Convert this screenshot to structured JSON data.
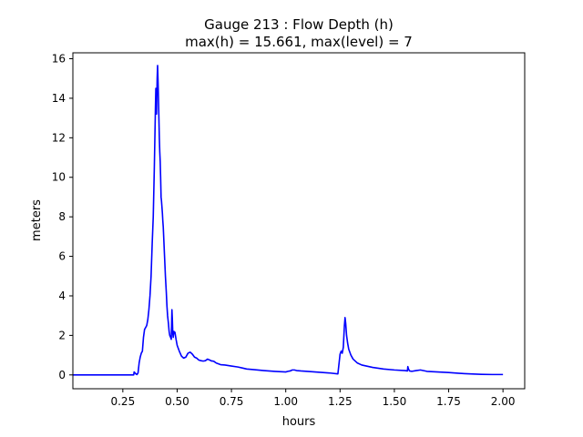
{
  "chart_data": {
    "type": "line",
    "title_lines": [
      "Gauge 213 : Flow Depth (h)",
      "max(h) =  15.661,    max(level) = 7"
    ],
    "xlabel": "hours",
    "ylabel": "meters",
    "xlim": [
      0.02,
      2.1
    ],
    "ylim": [
      -0.7,
      16.3
    ],
    "x_ticks": [
      0.25,
      0.5,
      0.75,
      1.0,
      1.25,
      1.5,
      1.75,
      2.0
    ],
    "x_tick_labels": [
      "0.25",
      "0.50",
      "0.75",
      "1.00",
      "1.25",
      "1.50",
      "1.75",
      "2.00"
    ],
    "y_ticks": [
      0,
      2,
      4,
      6,
      8,
      10,
      12,
      14,
      16
    ],
    "y_tick_labels": [
      "0",
      "2",
      "4",
      "6",
      "8",
      "10",
      "12",
      "14",
      "16"
    ],
    "grid": false,
    "series": [
      {
        "color": "#0000ff",
        "x": [
          0.0,
          0.1,
          0.2,
          0.3,
          0.302,
          0.305,
          0.31,
          0.315,
          0.32,
          0.325,
          0.33,
          0.335,
          0.34,
          0.345,
          0.35,
          0.355,
          0.36,
          0.365,
          0.37,
          0.375,
          0.38,
          0.385,
          0.39,
          0.395,
          0.4,
          0.402,
          0.405,
          0.408,
          0.41,
          0.412,
          0.414,
          0.416,
          0.418,
          0.42,
          0.422,
          0.424,
          0.426,
          0.428,
          0.43,
          0.432,
          0.434,
          0.436,
          0.438,
          0.44,
          0.442,
          0.444,
          0.446,
          0.448,
          0.45,
          0.453,
          0.456,
          0.46,
          0.463,
          0.466,
          0.47,
          0.473,
          0.476,
          0.478,
          0.48,
          0.482,
          0.485,
          0.49,
          0.495,
          0.5,
          0.51,
          0.52,
          0.53,
          0.54,
          0.55,
          0.56,
          0.57,
          0.58,
          0.59,
          0.6,
          0.61,
          0.62,
          0.63,
          0.64,
          0.65,
          0.66,
          0.665,
          0.67,
          0.68,
          0.7,
          0.72,
          0.75,
          0.78,
          0.8,
          0.82,
          0.85,
          0.9,
          0.95,
          1.0,
          1.01,
          1.02,
          1.03,
          1.04,
          1.05,
          1.07,
          1.1,
          1.15,
          1.2,
          1.24,
          1.25,
          1.255,
          1.26,
          1.265,
          1.27,
          1.273,
          1.276,
          1.28,
          1.285,
          1.29,
          1.3,
          1.31,
          1.33,
          1.35,
          1.4,
          1.45,
          1.5,
          1.55,
          1.56,
          1.562,
          1.565,
          1.57,
          1.58,
          1.6,
          1.62,
          1.65,
          1.7,
          1.75,
          1.8,
          1.85,
          1.9,
          1.95,
          2.0
        ],
        "y": [
          0.0,
          0.0,
          0.0,
          0.0,
          0.15,
          0.12,
          0.05,
          0.02,
          0.1,
          0.6,
          0.9,
          1.1,
          1.2,
          1.9,
          2.3,
          2.4,
          2.5,
          2.8,
          3.3,
          4.0,
          5.0,
          6.6,
          8.0,
          10.5,
          13.5,
          14.5,
          13.2,
          15.0,
          15.661,
          14.9,
          14.0,
          13.0,
          12.0,
          11.3,
          10.8,
          10.0,
          9.0,
          8.8,
          8.5,
          8.2,
          7.8,
          7.5,
          7.0,
          6.5,
          6.0,
          5.5,
          5.0,
          4.6,
          4.2,
          3.5,
          3.0,
          2.6,
          2.2,
          2.0,
          1.9,
          1.8,
          3.3,
          2.8,
          2.1,
          1.9,
          2.2,
          2.15,
          1.8,
          1.5,
          1.2,
          0.95,
          0.85,
          0.9,
          1.1,
          1.15,
          1.05,
          0.9,
          0.85,
          0.75,
          0.72,
          0.7,
          0.72,
          0.8,
          0.75,
          0.7,
          0.7,
          0.68,
          0.6,
          0.52,
          0.5,
          0.45,
          0.4,
          0.35,
          0.3,
          0.27,
          0.22,
          0.18,
          0.15,
          0.18,
          0.2,
          0.25,
          0.25,
          0.22,
          0.2,
          0.18,
          0.14,
          0.1,
          0.05,
          1.05,
          1.2,
          1.1,
          1.4,
          2.5,
          2.9,
          2.6,
          2.0,
          1.6,
          1.3,
          1.0,
          0.8,
          0.6,
          0.5,
          0.38,
          0.3,
          0.25,
          0.22,
          0.2,
          0.42,
          0.3,
          0.2,
          0.18,
          0.22,
          0.25,
          0.18,
          0.15,
          0.12,
          0.08,
          0.05,
          0.03,
          0.02,
          0.02
        ]
      }
    ]
  }
}
